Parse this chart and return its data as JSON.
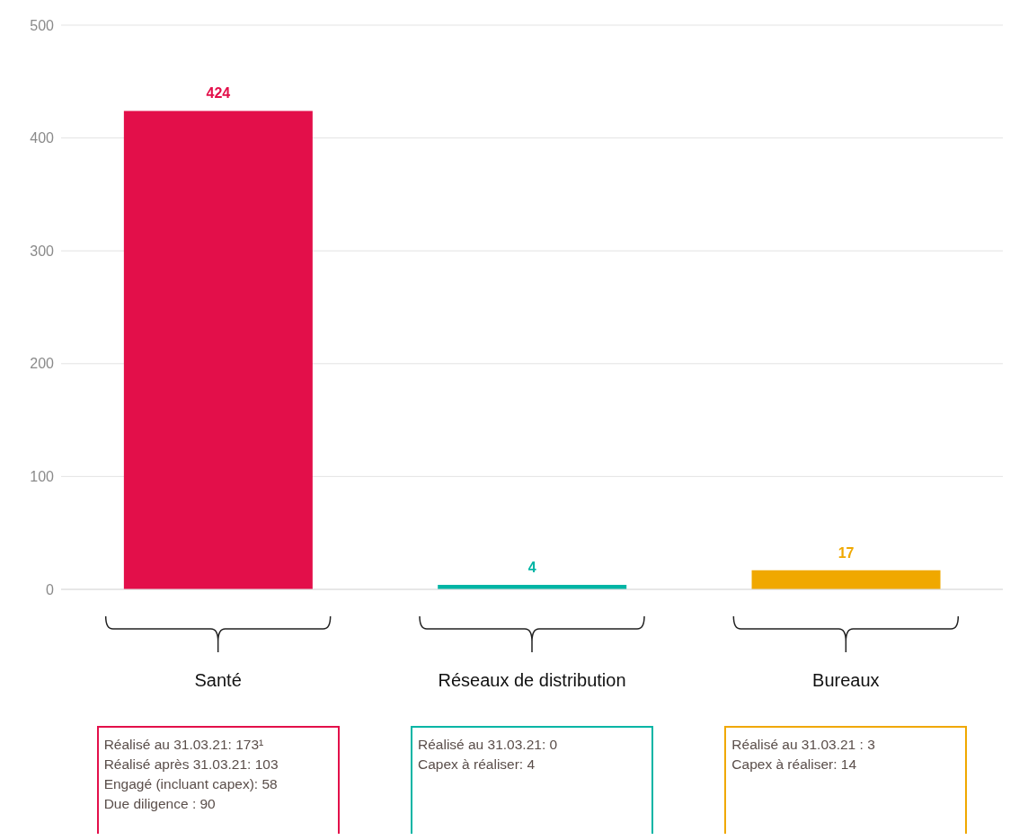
{
  "chart_data": {
    "type": "bar",
    "categories": [
      "Santé",
      "Réseaux de distribution",
      "Bureaux"
    ],
    "values": [
      424,
      4,
      17
    ],
    "colors": [
      "#e30f4a",
      "#00b5a5",
      "#f0a800"
    ],
    "ylim": [
      0,
      500
    ],
    "yticks": [
      0,
      100,
      200,
      300,
      400,
      500
    ],
    "grid": "y",
    "data_labels": true,
    "annotations": [
      "Réalisé au 31.03.21: 173¹\nRéalisé après 31.03.21: 103\nEngagé (incluant capex): 58\nDue diligence : 90",
      "Réalisé au 31.03.21: 0\nCapex à réaliser: 4",
      "Réalisé au 31.03.21 : 3\nCapex à réaliser: 14"
    ]
  }
}
